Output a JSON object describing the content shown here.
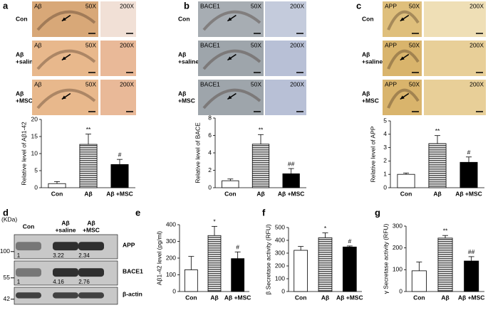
{
  "panel_labels": [
    "a",
    "b",
    "c",
    "d",
    "e",
    "f",
    "g"
  ],
  "image_panels": [
    {
      "stain": "Aβ",
      "low_mag": "50X",
      "high_mag": "200X",
      "rows": [
        [
          "Con"
        ],
        [
          "Aβ",
          "+saline"
        ],
        [
          "Aβ",
          "+MSC"
        ]
      ]
    },
    {
      "stain": "BACE1",
      "low_mag": "50X",
      "high_mag": "200X",
      "rows": [
        [
          "Con"
        ],
        [
          "Aβ",
          "+saline"
        ],
        [
          "Aβ",
          "+MSC"
        ]
      ]
    },
    {
      "stain": "APP",
      "low_mag": "50X",
      "high_mag": "200X",
      "rows": [
        [
          "Con"
        ],
        [
          "Aβ",
          "+saline"
        ],
        [
          "Aβ",
          "+MSC"
        ]
      ]
    }
  ],
  "blot": {
    "unit": "(KDa)",
    "lanes": [
      [
        "Con"
      ],
      [
        "Aβ",
        "+saline"
      ],
      [
        "Aβ",
        "+MSC"
      ]
    ],
    "bands": [
      {
        "name": "APP",
        "marker": 100,
        "values": [
          1,
          3.22,
          2.34
        ]
      },
      {
        "name": "BACE1",
        "marker": 55,
        "values": [
          1,
          4.16,
          2.76
        ]
      },
      {
        "name": "β-actin",
        "marker": 42
      }
    ]
  },
  "chart_data": [
    {
      "type": "bar",
      "y_label": "Relative level of Aβ1-42",
      "categories": [
        "Con",
        "Aβ",
        "Aβ +MSC"
      ],
      "values": [
        1.2,
        12.7,
        6.8
      ],
      "errors": [
        0.6,
        3,
        1.5
      ],
      "significance": [
        null,
        "**",
        "#"
      ],
      "colors": [
        "#ffffff",
        "#555555",
        "#000000"
      ],
      "hatch": [
        false,
        true,
        false
      ],
      "ylim": [
        0,
        20
      ],
      "yticks": [
        0,
        5,
        10,
        15,
        20
      ]
    },
    {
      "type": "bar",
      "y_label": "Relative level of BACE",
      "categories": [
        "Con",
        "Aβ",
        "Aβ +MSC"
      ],
      "values": [
        0.8,
        5.0,
        1.6
      ],
      "errors": [
        0.2,
        1.1,
        0.6
      ],
      "significance": [
        null,
        "**",
        "##"
      ],
      "colors": [
        "#ffffff",
        "#555555",
        "#000000"
      ],
      "hatch": [
        false,
        true,
        false
      ],
      "ylim": [
        0,
        8
      ],
      "yticks": [
        0,
        2,
        4,
        6,
        8
      ]
    },
    {
      "type": "bar",
      "y_label": "Relative level of APP",
      "categories": [
        "Con",
        "Aβ",
        "Aβ +MSC"
      ],
      "values": [
        1.0,
        3.3,
        1.9
      ],
      "errors": [
        0.1,
        0.6,
        0.4
      ],
      "significance": [
        null,
        "**",
        "#"
      ],
      "colors": [
        "#ffffff",
        "#555555",
        "#000000"
      ],
      "hatch": [
        false,
        true,
        false
      ],
      "ylim": [
        0,
        5
      ],
      "yticks": [
        0,
        1,
        2,
        3,
        4,
        5
      ]
    },
    {
      "type": "bar",
      "y_label": "Aβ1-42 level (pg/ml)",
      "categories": [
        "Con",
        "Aβ",
        "Aβ +MSC"
      ],
      "values": [
        130,
        335,
        197
      ],
      "errors": [
        80,
        55,
        40
      ],
      "significance": [
        null,
        "*",
        "#"
      ],
      "colors": [
        "#ffffff",
        "#555555",
        "#000000"
      ],
      "hatch": [
        false,
        true,
        false
      ],
      "ylim": [
        0,
        400
      ],
      "yticks": [
        0,
        100,
        200,
        300,
        400
      ]
    },
    {
      "type": "bar",
      "y_label": "β Secretase activity (RFU)",
      "categories": [
        "Con",
        "Aβ",
        "Aβ +MSC"
      ],
      "values": [
        322,
        420,
        348
      ],
      "errors": [
        30,
        38,
        8
      ],
      "significance": [
        null,
        "*",
        "#"
      ],
      "colors": [
        "#ffffff",
        "#555555",
        "#000000"
      ],
      "hatch": [
        false,
        true,
        false
      ],
      "ylim": [
        0,
        500
      ],
      "yticks": [
        0,
        100,
        200,
        300,
        400,
        500
      ]
    },
    {
      "type": "bar",
      "y_label": "γ Secretase activity (RFU)",
      "categories": [
        "Con",
        "Aβ",
        "Aβ +MSC"
      ],
      "values": [
        95,
        245,
        140
      ],
      "errors": [
        40,
        12,
        20
      ],
      "significance": [
        null,
        "**",
        "##"
      ],
      "colors": [
        "#ffffff",
        "#555555",
        "#000000"
      ],
      "hatch": [
        false,
        true,
        false
      ],
      "ylim": [
        0,
        300
      ],
      "yticks": [
        0,
        100,
        200,
        300
      ]
    }
  ]
}
